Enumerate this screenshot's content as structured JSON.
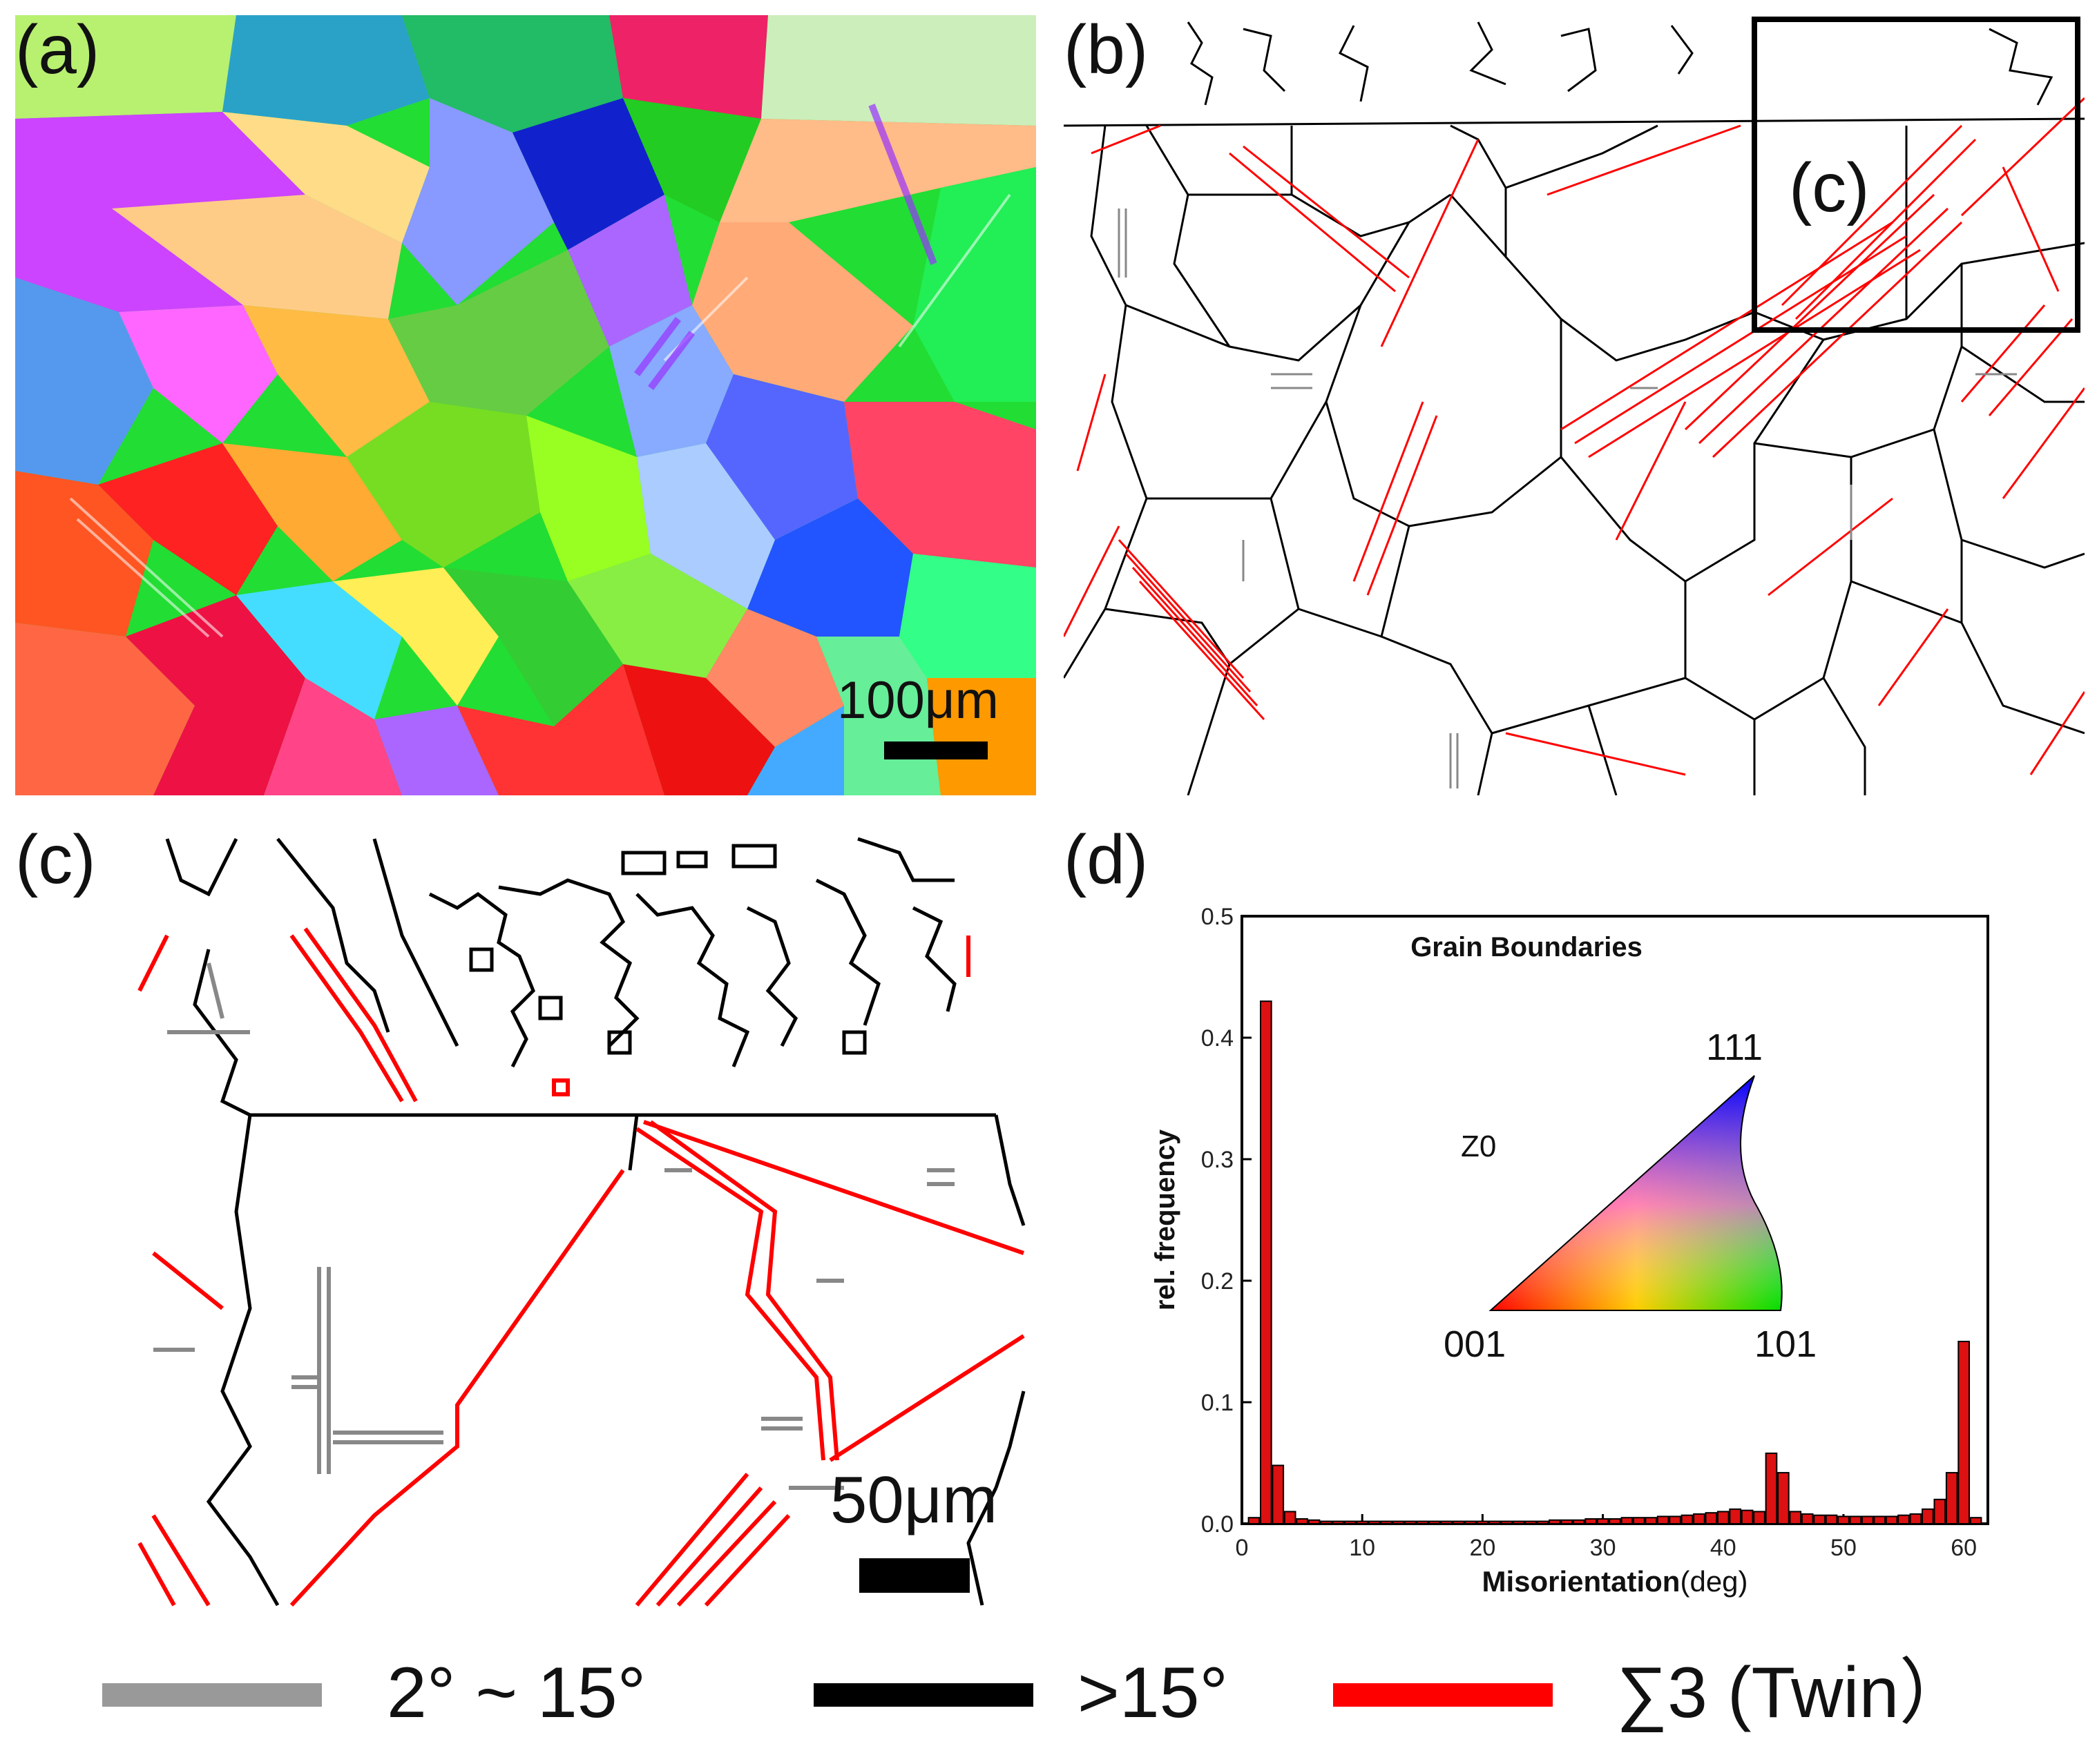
{
  "panels": {
    "a": {
      "label": "(a)",
      "scale_label": "100μm"
    },
    "b": {
      "label": "(b)",
      "inset_label": "(c)"
    },
    "c": {
      "label": "(c)",
      "scale_label": "50μm"
    },
    "d": {
      "label": "(d)"
    }
  },
  "legend": {
    "items": [
      {
        "label": "2° ~ 15°",
        "color": "#999999"
      },
      {
        "label": ">15°",
        "color": "#000000"
      },
      {
        "label": "∑3 (Twin）",
        "color": "#ff0000"
      }
    ]
  },
  "ipf_key": {
    "z_label": "Z0",
    "corner_001": "001",
    "corner_101": "101",
    "corner_111": "111"
  },
  "chart_data": {
    "type": "bar",
    "title": "Grain Boundaries",
    "xlabel": "Misorientation",
    "xlabel_unit": "(deg)",
    "ylabel": "rel. frequency",
    "xlim": [
      0,
      62
    ],
    "ylim": [
      0,
      0.5
    ],
    "xticks": [
      "0",
      "10",
      "20",
      "30",
      "40",
      "50",
      "60"
    ],
    "yticks": [
      "0.0",
      "0.1",
      "0.2",
      "0.3",
      "0.4",
      "0.5"
    ],
    "bar_color": "#dd1111",
    "x": [
      1,
      2,
      3,
      4,
      5,
      6,
      7,
      8,
      9,
      10,
      11,
      12,
      13,
      14,
      15,
      16,
      17,
      18,
      19,
      20,
      21,
      22,
      23,
      24,
      25,
      26,
      27,
      28,
      29,
      30,
      31,
      32,
      33,
      34,
      35,
      36,
      37,
      38,
      39,
      40,
      41,
      42,
      43,
      44,
      45,
      46,
      47,
      48,
      49,
      50,
      51,
      52,
      53,
      54,
      55,
      56,
      57,
      58,
      59,
      60,
      61
    ],
    "values": [
      0.005,
      0.43,
      0.048,
      0.01,
      0.004,
      0.003,
      0.002,
      0.002,
      0.002,
      0.002,
      0.002,
      0.002,
      0.002,
      0.002,
      0.002,
      0.002,
      0.002,
      0.002,
      0.002,
      0.002,
      0.002,
      0.002,
      0.002,
      0.002,
      0.002,
      0.003,
      0.003,
      0.003,
      0.004,
      0.004,
      0.004,
      0.005,
      0.005,
      0.005,
      0.006,
      0.006,
      0.007,
      0.008,
      0.009,
      0.01,
      0.012,
      0.011,
      0.01,
      0.058,
      0.042,
      0.01,
      0.008,
      0.007,
      0.007,
      0.006,
      0.006,
      0.006,
      0.006,
      0.006,
      0.007,
      0.008,
      0.012,
      0.02,
      0.042,
      0.15,
      0.005
    ]
  }
}
